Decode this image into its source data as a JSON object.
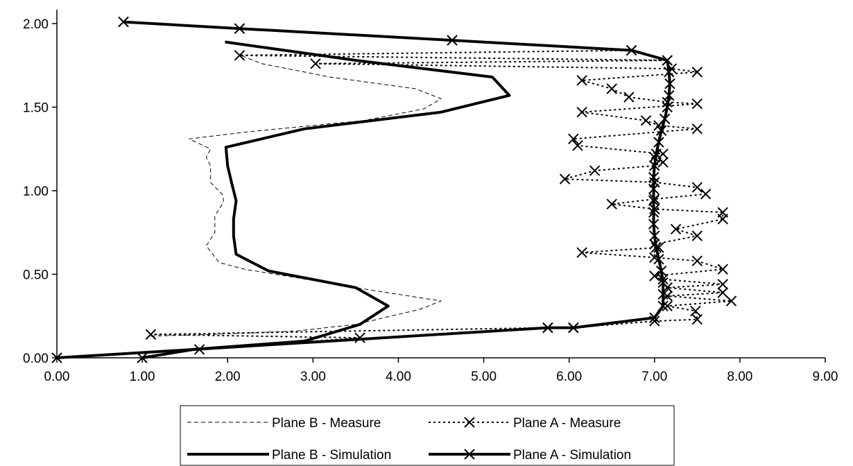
{
  "chart_data": {
    "type": "line",
    "title": "",
    "xlabel": "",
    "ylabel": "",
    "xlim": [
      0,
      9
    ],
    "ylim": [
      0,
      2
    ],
    "x_ticks": [
      "0.00",
      "1.00",
      "2.00",
      "3.00",
      "4.00",
      "5.00",
      "6.00",
      "7.00",
      "8.00",
      "9.00"
    ],
    "y_ticks": [
      "0.00",
      "0.50",
      "1.00",
      "1.50",
      "2.00"
    ],
    "grid": false,
    "legend_position": "bottom",
    "series": [
      {
        "name": "Plane B - Measure",
        "style": "thin-dashed",
        "marker": "none",
        "points": [
          [
            1.1,
            0.13
          ],
          [
            1.8,
            0.14
          ],
          [
            2.8,
            0.16
          ],
          [
            3.5,
            0.2
          ],
          [
            4.25,
            0.29
          ],
          [
            4.5,
            0.34
          ],
          [
            3.5,
            0.42
          ],
          [
            2.8,
            0.48
          ],
          [
            2.2,
            0.53
          ],
          [
            1.9,
            0.57
          ],
          [
            1.75,
            0.67
          ],
          [
            1.85,
            0.75
          ],
          [
            1.85,
            0.85
          ],
          [
            1.95,
            0.93
          ],
          [
            1.95,
            0.97
          ],
          [
            1.8,
            1.05
          ],
          [
            1.8,
            1.15
          ],
          [
            1.75,
            1.2
          ],
          [
            1.8,
            1.25
          ],
          [
            1.55,
            1.31
          ],
          [
            2.2,
            1.35
          ],
          [
            3.6,
            1.42
          ],
          [
            4.3,
            1.49
          ],
          [
            4.5,
            1.55
          ],
          [
            4.2,
            1.61
          ],
          [
            3.2,
            1.68
          ],
          [
            2.4,
            1.76
          ],
          [
            2.15,
            1.81
          ]
        ]
      },
      {
        "name": "Plane A - Measure",
        "style": "dotted",
        "marker": "x",
        "points": [
          [
            1.0,
            0.0
          ],
          [
            1.67,
            0.05
          ],
          [
            3.55,
            0.12
          ],
          [
            1.1,
            0.14
          ],
          [
            5.75,
            0.18
          ],
          [
            6.05,
            0.18
          ],
          [
            7.0,
            0.22
          ],
          [
            7.5,
            0.23
          ],
          [
            7.48,
            0.28
          ],
          [
            7.15,
            0.31
          ],
          [
            7.9,
            0.34
          ],
          [
            7.15,
            0.37
          ],
          [
            7.8,
            0.39
          ],
          [
            7.15,
            0.42
          ],
          [
            7.8,
            0.44
          ],
          [
            7.1,
            0.47
          ],
          [
            7.0,
            0.49
          ],
          [
            7.8,
            0.53
          ],
          [
            7.5,
            0.58
          ],
          [
            7.0,
            0.6
          ],
          [
            6.15,
            0.63
          ],
          [
            7.05,
            0.66
          ],
          [
            7.0,
            0.68
          ],
          [
            7.5,
            0.73
          ],
          [
            7.25,
            0.77
          ],
          [
            7.8,
            0.83
          ],
          [
            7.8,
            0.87
          ],
          [
            7.0,
            0.89
          ],
          [
            6.5,
            0.92
          ],
          [
            7.0,
            0.95
          ],
          [
            7.6,
            0.98
          ],
          [
            7.5,
            1.02
          ],
          [
            7.0,
            1.05
          ],
          [
            5.95,
            1.07
          ],
          [
            6.3,
            1.12
          ],
          [
            7.0,
            1.15
          ],
          [
            7.1,
            1.17
          ],
          [
            7.0,
            1.2
          ],
          [
            7.1,
            1.22
          ],
          [
            6.1,
            1.27
          ],
          [
            6.05,
            1.31
          ],
          [
            7.5,
            1.37
          ],
          [
            7.05,
            1.39
          ],
          [
            6.9,
            1.42
          ],
          [
            6.15,
            1.47
          ],
          [
            7.5,
            1.52
          ],
          [
            7.15,
            1.53
          ],
          [
            6.7,
            1.56
          ],
          [
            6.5,
            1.61
          ],
          [
            6.15,
            1.66
          ],
          [
            7.5,
            1.71
          ],
          [
            7.2,
            1.73
          ],
          [
            3.03,
            1.76
          ],
          [
            7.15,
            1.78
          ],
          [
            2.14,
            1.81
          ],
          [
            6.73,
            1.84
          ],
          [
            4.63,
            1.9
          ],
          [
            2.14,
            1.97
          ],
          [
            0.78,
            2.01
          ]
        ]
      },
      {
        "name": "Plane B - Simulation",
        "style": "thick-solid",
        "marker": "none",
        "points": [
          [
            1.0,
            0.0
          ],
          [
            1.6,
            0.05
          ],
          [
            2.9,
            0.1
          ],
          [
            3.55,
            0.2
          ],
          [
            3.88,
            0.31
          ],
          [
            3.5,
            0.42
          ],
          [
            2.48,
            0.52
          ],
          [
            2.1,
            0.62
          ],
          [
            2.07,
            0.73
          ],
          [
            2.07,
            0.83
          ],
          [
            2.1,
            0.94
          ],
          [
            2.05,
            1.04
          ],
          [
            2.0,
            1.15
          ],
          [
            1.98,
            1.26
          ],
          [
            2.9,
            1.37
          ],
          [
            4.5,
            1.47
          ],
          [
            5.3,
            1.57
          ],
          [
            5.1,
            1.68
          ],
          [
            3.5,
            1.78
          ],
          [
            1.97,
            1.89
          ]
        ]
      },
      {
        "name": "Plane A - Simulation",
        "style": "thick-solid",
        "marker": "x",
        "points": [
          [
            0.0,
            0.0
          ],
          [
            5.75,
            0.18
          ],
          [
            6.05,
            0.18
          ],
          [
            7.0,
            0.24
          ],
          [
            7.1,
            0.31
          ],
          [
            7.1,
            0.38
          ],
          [
            7.1,
            0.45
          ],
          [
            7.08,
            0.52
          ],
          [
            7.05,
            0.59
          ],
          [
            7.02,
            0.66
          ],
          [
            7.0,
            0.73
          ],
          [
            6.99,
            0.8
          ],
          [
            6.99,
            0.87
          ],
          [
            6.99,
            0.94
          ],
          [
            6.99,
            1.01
          ],
          [
            6.99,
            1.08
          ],
          [
            7.0,
            1.15
          ],
          [
            7.02,
            1.22
          ],
          [
            7.05,
            1.29
          ],
          [
            7.08,
            1.36
          ],
          [
            7.12,
            1.43
          ],
          [
            7.15,
            1.5
          ],
          [
            7.17,
            1.57
          ],
          [
            7.18,
            1.64
          ],
          [
            7.17,
            1.71
          ],
          [
            7.15,
            1.78
          ],
          [
            6.73,
            1.84
          ],
          [
            4.63,
            1.9
          ],
          [
            2.14,
            1.97
          ],
          [
            0.78,
            2.01
          ]
        ]
      }
    ]
  }
}
